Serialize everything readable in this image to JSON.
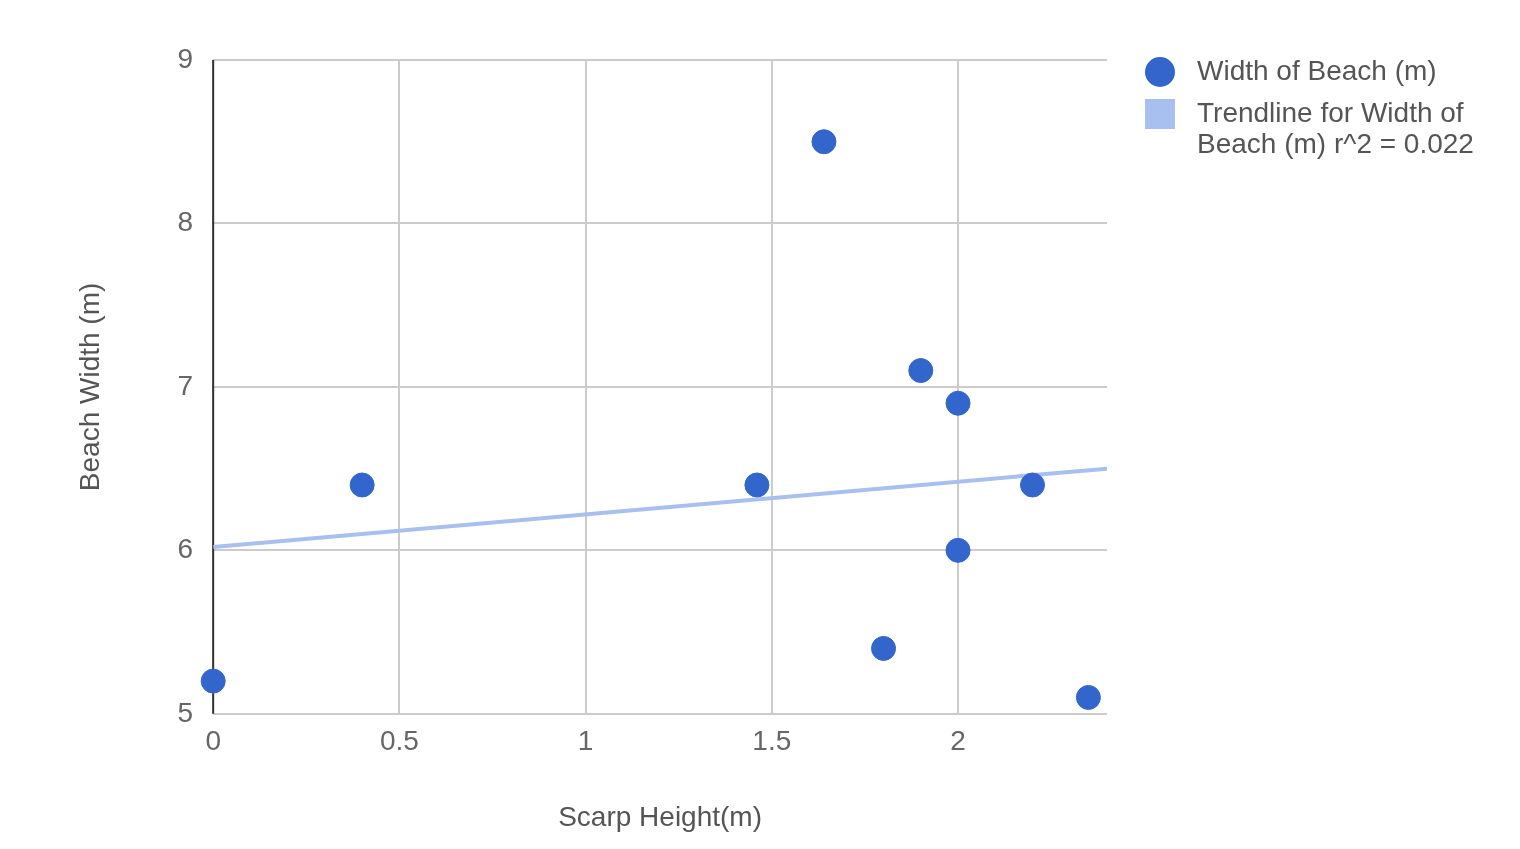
{
  "chart_data": {
    "type": "scatter",
    "xlabel": "Scarp Height(m)",
    "ylabel": "Beach Width (m)",
    "xlim": [
      0,
      2.4
    ],
    "xticks": [
      0,
      0.5,
      1,
      1.5,
      2
    ],
    "ylim": [
      5,
      9
    ],
    "yticks": [
      5,
      6,
      7,
      8,
      9
    ],
    "grid": true,
    "legend": "right",
    "series": [
      {
        "name": "Width of Beach (m)",
        "color": "#3366cc",
        "marker": "circle",
        "x": [
          0,
          0.4,
          1.46,
          1.64,
          1.8,
          1.9,
          2,
          2,
          2.2,
          2.35
        ],
        "values": [
          5.2,
          6.4,
          6.4,
          8.5,
          5.4,
          7.1,
          6.9,
          6.0,
          6.4,
          5.1
        ]
      },
      {
        "name": "Trendline for Width of Beach (m) r^2 = 0.022",
        "type": "line",
        "marker": "none",
        "color": "#a8c0f0",
        "x": [
          0,
          2.4
        ],
        "values": [
          6.02,
          6.5
        ]
      }
    ]
  }
}
